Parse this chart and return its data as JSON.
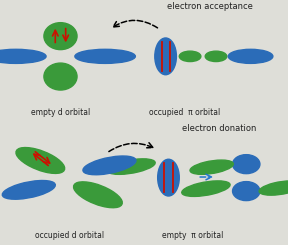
{
  "top_bg": "#deded8",
  "bottom_bg": "#aacfe0",
  "blue": "#2b6cb8",
  "green": "#3a9a3a",
  "red_col": "#cc1100",
  "text_color": "#222222",
  "top_label_left": "empty d orbital",
  "top_label_right": "occupied  π orbital",
  "top_label_title": "electron acceptance",
  "bottom_label_left": "occupied d orbital",
  "bottom_label_right": "empty  π orbital",
  "bottom_label_title": "electron donation"
}
